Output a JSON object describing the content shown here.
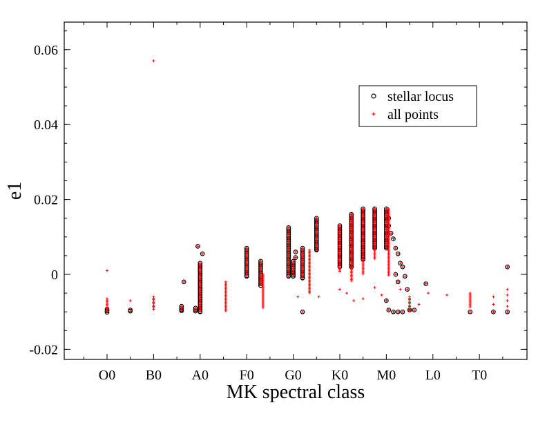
{
  "chart_data": {
    "type": "scatter",
    "title": "",
    "xlabel": "MK spectral class",
    "ylabel": "e1",
    "xlim": [
      -1.1,
      8.8
    ],
    "ylim": [
      -0.0225,
      0.0675
    ],
    "x_ticks": [
      {
        "value": 0,
        "label": "O0"
      },
      {
        "value": 1,
        "label": "B0"
      },
      {
        "value": 2,
        "label": "A0"
      },
      {
        "value": 3,
        "label": "F0"
      },
      {
        "value": 4,
        "label": "G0"
      },
      {
        "value": 5,
        "label": "K0"
      },
      {
        "value": 6,
        "label": "M0"
      },
      {
        "value": 7,
        "label": "L0"
      },
      {
        "value": 8,
        "label": "T0"
      }
    ],
    "y_ticks": [
      {
        "value": -0.02,
        "label": "-0.02"
      },
      {
        "value": 0,
        "label": "0"
      },
      {
        "value": 0.02,
        "label": "0.02"
      },
      {
        "value": 0.04,
        "label": "0.04"
      },
      {
        "value": 0.06,
        "label": "0.06"
      }
    ],
    "grid": false,
    "legend": {
      "position": "top-right",
      "entries": [
        {
          "name": "stellar locus",
          "marker": "circle",
          "color": "#000000"
        },
        {
          "name": "all points",
          "marker": "plus",
          "color": "#ff0000"
        }
      ]
    },
    "series": [
      {
        "name": "stellar locus",
        "color": "#000000",
        "columns": [
          {
            "x": 0.0,
            "ymin": -0.0101,
            "ymax": -0.0093
          },
          {
            "x": 0.5,
            "ymin": -0.0098,
            "ymax": -0.0095
          },
          {
            "x": 1.6,
            "ymin": -0.0097,
            "ymax": -0.0085
          },
          {
            "x": 1.9,
            "ymin": -0.0098,
            "ymax": -0.009
          },
          {
            "x": 2.0,
            "ymin": -0.01,
            "ymax": 0.003
          },
          {
            "x": 3.0,
            "ymin": -0.0005,
            "ymax": 0.007
          },
          {
            "x": 3.3,
            "ymin": -0.003,
            "ymax": 0.0035
          },
          {
            "x": 3.9,
            "ymin": -0.0005,
            "ymax": 0.0125
          },
          {
            "x": 4.0,
            "ymin": -0.0005,
            "ymax": 0.0035
          },
          {
            "x": 4.2,
            "ymin": -0.001,
            "ymax": 0.007
          },
          {
            "x": 4.5,
            "ymin": 0.0065,
            "ymax": 0.015
          },
          {
            "x": 5.0,
            "ymin": 0.002,
            "ymax": 0.013
          },
          {
            "x": 5.25,
            "ymin": 0.002,
            "ymax": 0.016
          },
          {
            "x": 5.5,
            "ymin": 0.004,
            "ymax": 0.0175
          },
          {
            "x": 5.75,
            "ymin": 0.007,
            "ymax": 0.0175
          },
          {
            "x": 6.0,
            "ymin": 0.007,
            "ymax": 0.0175
          }
        ],
        "points": [
          {
            "x": 1.95,
            "y": 0.0075
          },
          {
            "x": 2.05,
            "y": 0.0055
          },
          {
            "x": 1.65,
            "y": -0.002
          },
          {
            "x": 4.05,
            "y": 0.006
          },
          {
            "x": 4.05,
            "y": 0.0045
          },
          {
            "x": 4.2,
            "y": -0.01
          },
          {
            "x": 6.05,
            "y": 0.015
          },
          {
            "x": 6.05,
            "y": 0.013
          },
          {
            "x": 6.1,
            "y": 0.011
          },
          {
            "x": 6.15,
            "y": 0.0095
          },
          {
            "x": 6.2,
            "y": 0.007
          },
          {
            "x": 6.25,
            "y": 0.0055
          },
          {
            "x": 6.3,
            "y": 0.003
          },
          {
            "x": 6.35,
            "y": 0.002
          },
          {
            "x": 6.2,
            "y": 0.0
          },
          {
            "x": 6.25,
            "y": -0.002
          },
          {
            "x": 6.4,
            "y": -0.0005
          },
          {
            "x": 6.45,
            "y": -0.004
          },
          {
            "x": 6.0,
            "y": -0.007
          },
          {
            "x": 6.05,
            "y": -0.0095
          },
          {
            "x": 6.15,
            "y": -0.01
          },
          {
            "x": 6.25,
            "y": -0.01
          },
          {
            "x": 6.35,
            "y": -0.01
          },
          {
            "x": 6.5,
            "y": -0.0095
          },
          {
            "x": 6.6,
            "y": -0.0095
          },
          {
            "x": 6.85,
            "y": -0.0025
          },
          {
            "x": 7.8,
            "y": -0.01
          },
          {
            "x": 8.3,
            "y": -0.01
          },
          {
            "x": 8.6,
            "y": -0.01
          },
          {
            "x": 8.6,
            "y": 0.002
          }
        ]
      },
      {
        "name": "all points",
        "color": "#ff0000",
        "columns": [
          {
            "x": 0.0,
            "ymin": -0.01,
            "ymax": -0.0065
          },
          {
            "x": 1.0,
            "ymin": -0.0095,
            "ymax": -0.006
          },
          {
            "x": 2.55,
            "ymin": -0.01,
            "ymax": -0.002
          },
          {
            "x": 3.35,
            "ymin": -0.009,
            "ymax": 0.0
          },
          {
            "x": 4.35,
            "ymin": -0.005,
            "ymax": 0.0065
          },
          {
            "x": 5.0,
            "ymin": 0.0005,
            "ymax": 0.013
          },
          {
            "x": 5.25,
            "ymin": -0.002,
            "ymax": 0.016
          },
          {
            "x": 5.5,
            "ymin": 0.0,
            "ymax": 0.0175
          },
          {
            "x": 5.75,
            "ymin": 0.004,
            "ymax": 0.0175
          },
          {
            "x": 6.05,
            "ymin": -0.0005,
            "ymax": 0.0175
          },
          {
            "x": 6.5,
            "ymin": -0.01,
            "ymax": -0.006
          },
          {
            "x": 7.8,
            "ymin": -0.009,
            "ymax": -0.005
          }
        ],
        "points": [
          {
            "x": 0.0,
            "y": 0.001
          },
          {
            "x": 0.5,
            "y": -0.007
          },
          {
            "x": 1.0,
            "y": 0.057
          },
          {
            "x": 4.1,
            "y": -0.006
          },
          {
            "x": 4.55,
            "y": -0.006
          },
          {
            "x": 5.0,
            "y": -0.004
          },
          {
            "x": 5.15,
            "y": -0.005
          },
          {
            "x": 5.3,
            "y": -0.007
          },
          {
            "x": 5.5,
            "y": -0.0065
          },
          {
            "x": 5.75,
            "y": -0.0035
          },
          {
            "x": 5.9,
            "y": -0.0055
          },
          {
            "x": 6.3,
            "y": -0.004
          },
          {
            "x": 6.7,
            "y": -0.008
          },
          {
            "x": 6.9,
            "y": -0.005
          },
          {
            "x": 7.3,
            "y": -0.0055
          },
          {
            "x": 8.3,
            "y": -0.008
          },
          {
            "x": 8.3,
            "y": -0.006
          },
          {
            "x": 8.6,
            "y": -0.0055
          },
          {
            "x": 8.6,
            "y": -0.007
          },
          {
            "x": 8.6,
            "y": -0.004
          },
          {
            "x": 8.6,
            "y": -0.0085
          }
        ]
      }
    ]
  }
}
